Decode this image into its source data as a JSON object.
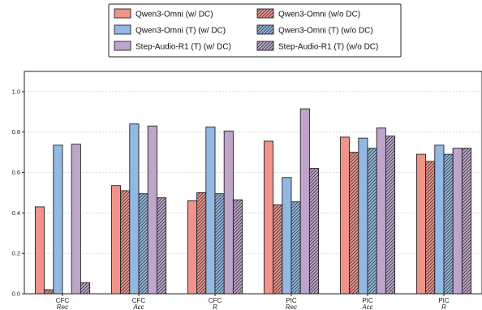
{
  "chart_data": {
    "type": "bar",
    "categories": [
      {
        "name": "CFC",
        "sub": "Rec"
      },
      {
        "name": "CFC",
        "sub": "Acc"
      },
      {
        "name": "CFC",
        "sub": "R"
      },
      {
        "name": "PIC",
        "sub": "Rec"
      },
      {
        "name": "PIC",
        "sub": "Acc"
      },
      {
        "name": "PIC",
        "sub": "R"
      }
    ],
    "series": [
      {
        "name": "Qwen3-Omni (w/ DC)",
        "color": "#f0938a",
        "hatch": false,
        "values": [
          0.43,
          0.535,
          0.46,
          0.755,
          0.775,
          0.69
        ]
      },
      {
        "name": "Qwen3-Omni (w/o DC)",
        "color": "#f0938a",
        "hatch": true,
        "values": [
          0.02,
          0.51,
          0.5,
          0.44,
          0.7,
          0.655
        ]
      },
      {
        "name": "Qwen3-Omni (T) (w/ DC)",
        "color": "#93b8e2",
        "hatch": false,
        "values": [
          0.735,
          0.84,
          0.825,
          0.575,
          0.77,
          0.735
        ]
      },
      {
        "name": "Qwen3-Omni (T) (w/o DC)",
        "color": "#93b8e2",
        "hatch": true,
        "values": [
          0.0,
          0.495,
          0.495,
          0.455,
          0.72,
          0.69
        ]
      },
      {
        "name": "Step-Audio-R1 (T) (w/ DC)",
        "color": "#bfa5cc",
        "hatch": false,
        "values": [
          0.74,
          0.83,
          0.805,
          0.915,
          0.82,
          0.72
        ]
      },
      {
        "name": "Step-Audio-R1 (T) (w/o DC)",
        "color": "#bfa5cc",
        "hatch": true,
        "values": [
          0.055,
          0.475,
          0.465,
          0.62,
          0.78,
          0.72
        ]
      }
    ],
    "ylim": [
      0,
      1.1
    ],
    "yticks": [
      "0.0",
      "0.2",
      "0.4",
      "0.6",
      "0.8",
      "1.0"
    ],
    "grid": true,
    "legend_position": "top-center"
  }
}
